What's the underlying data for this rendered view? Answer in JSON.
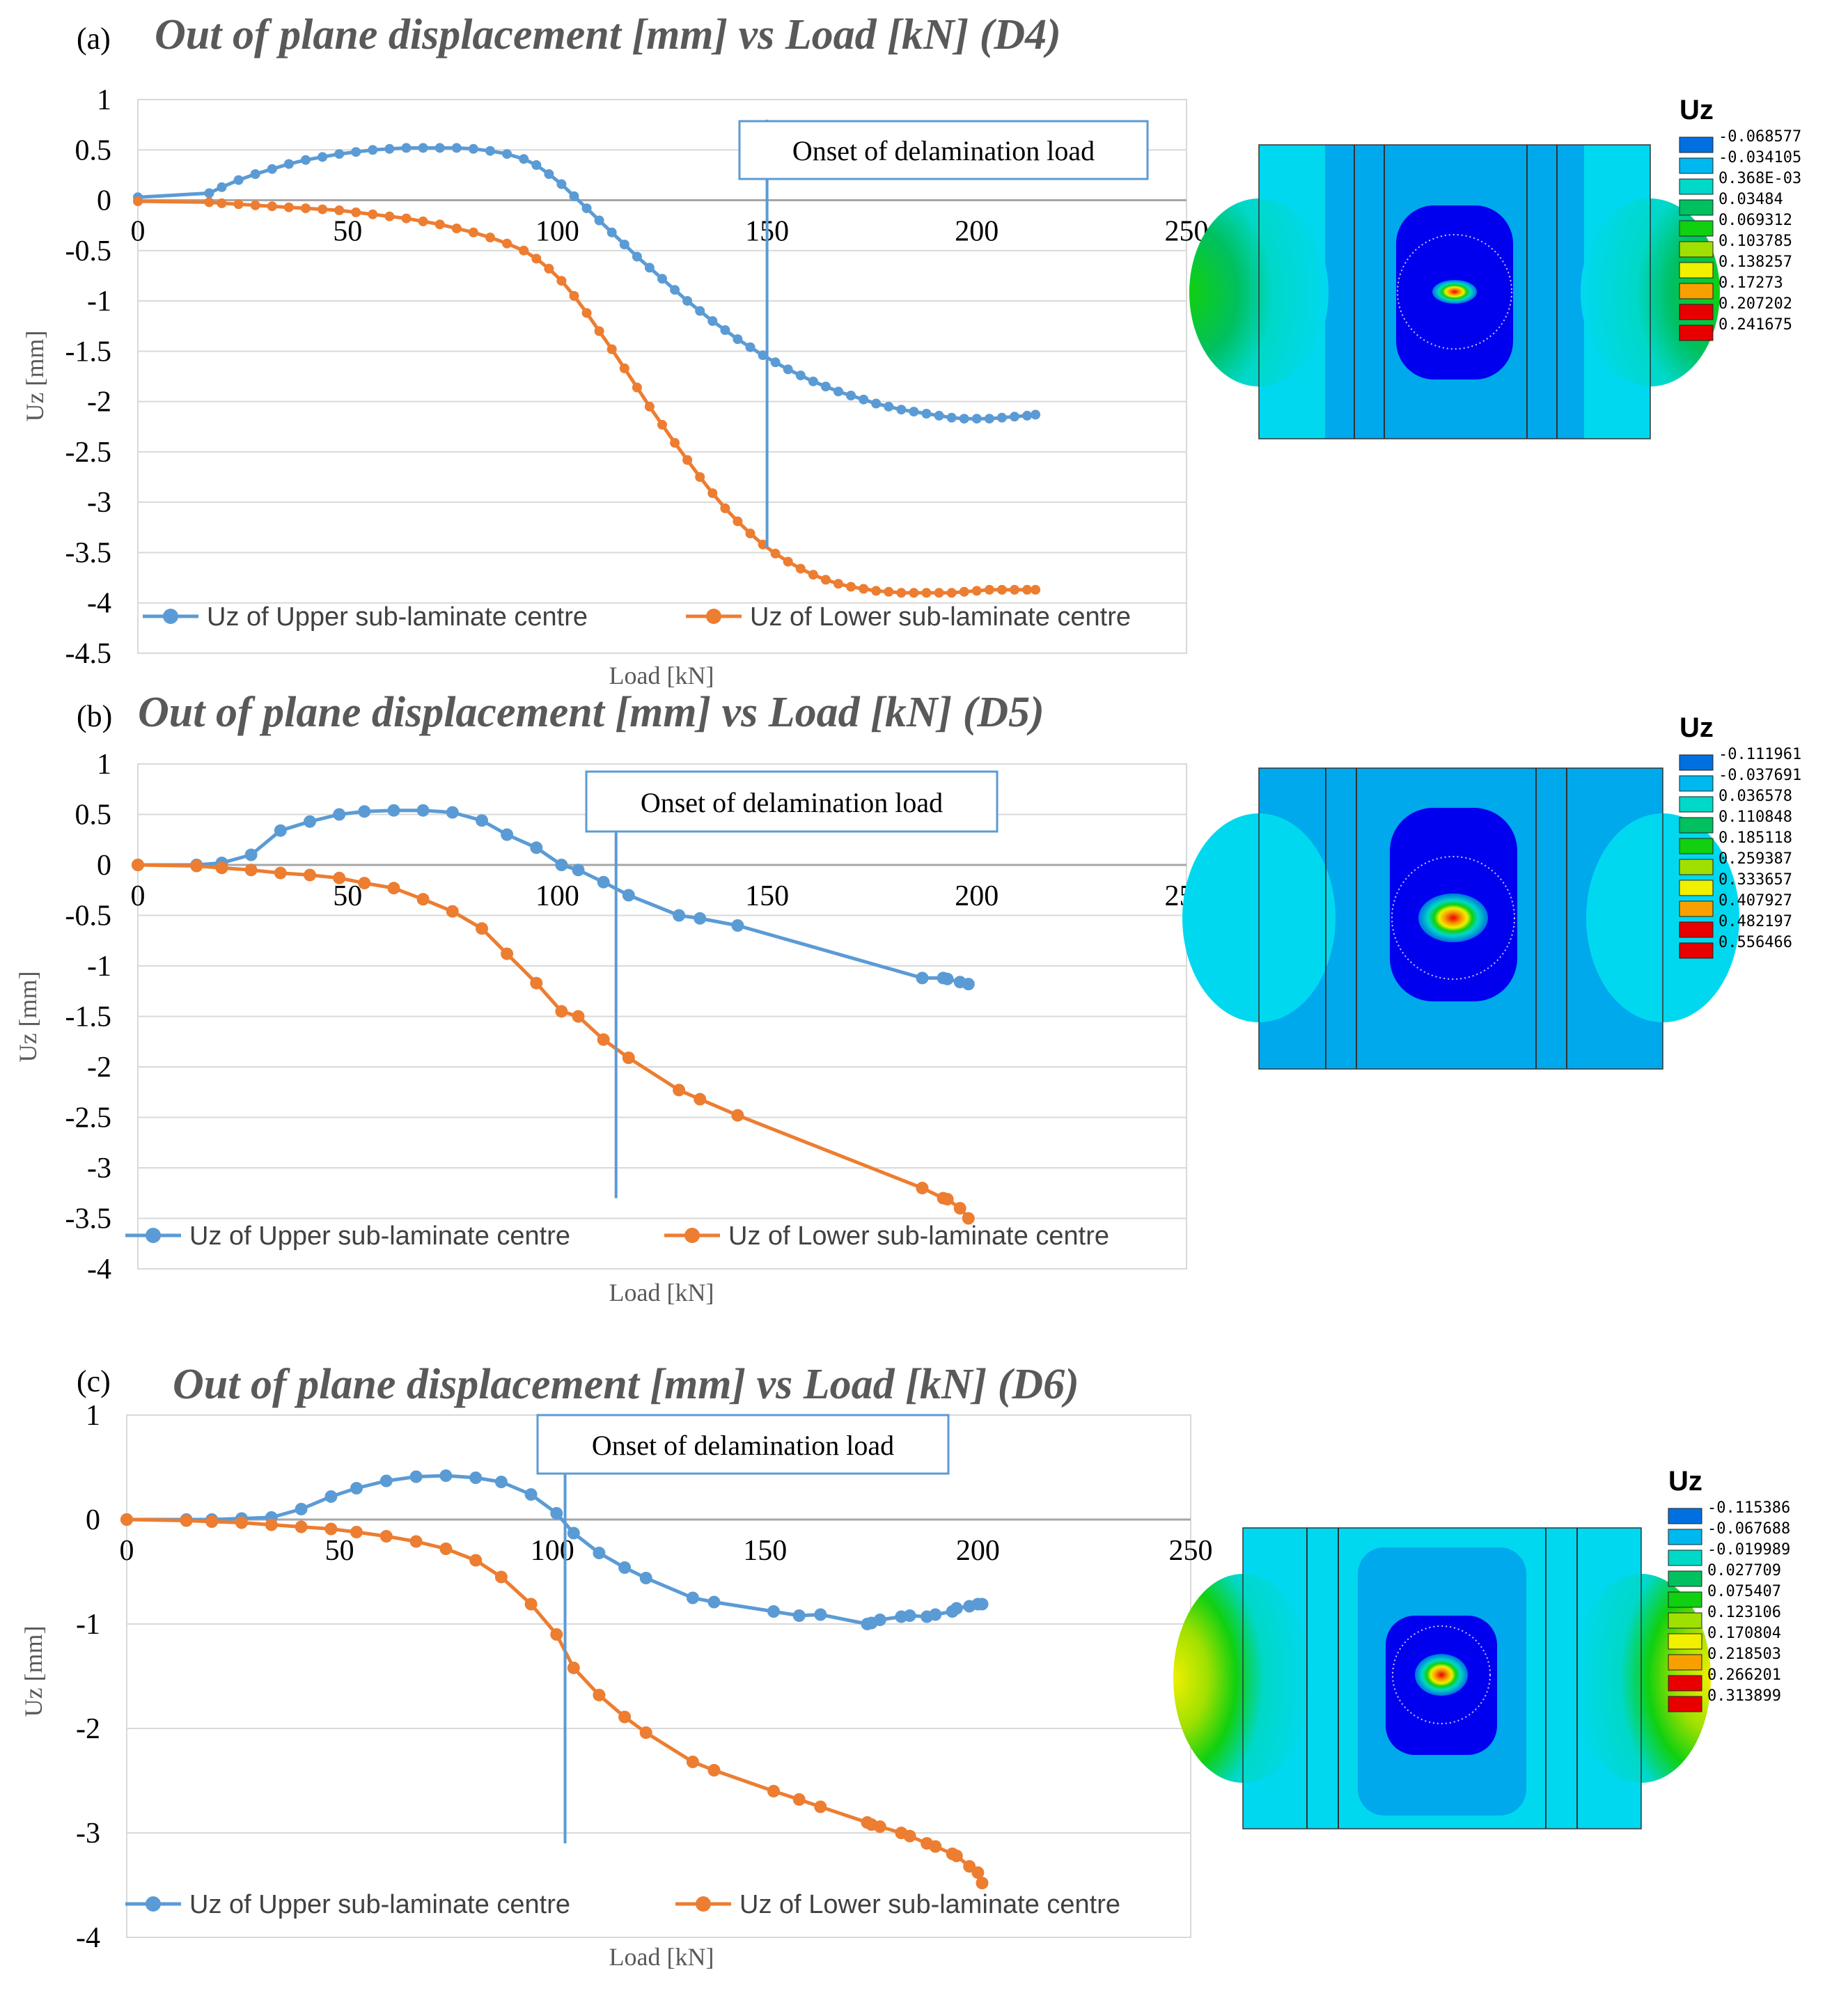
{
  "chart_data": [
    {
      "type": "line",
      "panel": "(a)",
      "title": "Out of plane displacement [mm] vs Load [kN] (D4)",
      "xlabel": "Load [kN]",
      "ylabel": "Uz [mm]",
      "xlim": [
        0,
        250
      ],
      "ylim": [
        -4.5,
        1
      ],
      "xticks": [
        0,
        50,
        100,
        150,
        200,
        250
      ],
      "yticks": [
        1,
        0.5,
        0,
        -0.5,
        -1,
        -1.5,
        -2,
        -2.5,
        -3,
        -3.5,
        -4,
        -4.5
      ],
      "annotation": {
        "text": "Onset of delamination load",
        "x": 150,
        "y_from": -3.45,
        "y_to": 0.8
      },
      "series": [
        {
          "name": "Uz of Upper sub-laminate centre",
          "color": "#5B9BD5",
          "x": [
            0,
            17,
            20,
            24,
            28,
            32,
            36,
            40,
            44,
            48,
            52,
            56,
            60,
            64,
            68,
            72,
            76,
            80,
            84,
            88,
            92,
            95,
            98,
            101,
            104,
            107,
            110,
            113,
            116,
            119,
            122,
            125,
            128,
            131,
            134,
            137,
            140,
            143,
            146,
            149,
            152,
            155,
            158,
            161,
            164,
            167,
            170,
            173,
            176,
            179,
            182,
            185,
            188,
            191,
            194,
            197,
            200,
            203,
            206,
            209,
            212,
            214
          ],
          "y": [
            0.03,
            0.07,
            0.13,
            0.2,
            0.26,
            0.31,
            0.36,
            0.4,
            0.43,
            0.46,
            0.48,
            0.5,
            0.51,
            0.52,
            0.52,
            0.52,
            0.52,
            0.51,
            0.49,
            0.46,
            0.41,
            0.35,
            0.26,
            0.16,
            0.04,
            -0.08,
            -0.2,
            -0.32,
            -0.44,
            -0.56,
            -0.67,
            -0.78,
            -0.89,
            -1.0,
            -1.1,
            -1.2,
            -1.29,
            -1.38,
            -1.46,
            -1.54,
            -1.61,
            -1.68,
            -1.74,
            -1.8,
            -1.85,
            -1.9,
            -1.94,
            -1.98,
            -2.02,
            -2.05,
            -2.08,
            -2.1,
            -2.12,
            -2.14,
            -2.16,
            -2.17,
            -2.17,
            -2.17,
            -2.16,
            -2.15,
            -2.14,
            -2.13
          ]
        },
        {
          "name": "Uz of Lower sub-laminate centre",
          "color": "#ED7D31",
          "x": [
            0,
            17,
            20,
            24,
            28,
            32,
            36,
            40,
            44,
            48,
            52,
            56,
            60,
            64,
            68,
            72,
            76,
            80,
            84,
            88,
            92,
            95,
            98,
            101,
            104,
            107,
            110,
            113,
            116,
            119,
            122,
            125,
            128,
            131,
            134,
            137,
            140,
            143,
            146,
            149,
            152,
            155,
            158,
            161,
            164,
            167,
            170,
            173,
            176,
            179,
            182,
            185,
            188,
            191,
            194,
            197,
            200,
            203,
            206,
            209,
            212,
            214
          ],
          "y": [
            -0.01,
            -0.02,
            -0.03,
            -0.04,
            -0.05,
            -0.06,
            -0.07,
            -0.08,
            -0.09,
            -0.1,
            -0.12,
            -0.14,
            -0.16,
            -0.18,
            -0.21,
            -0.24,
            -0.28,
            -0.32,
            -0.37,
            -0.43,
            -0.5,
            -0.58,
            -0.68,
            -0.8,
            -0.95,
            -1.12,
            -1.3,
            -1.48,
            -1.67,
            -1.86,
            -2.05,
            -2.23,
            -2.41,
            -2.58,
            -2.75,
            -2.91,
            -3.06,
            -3.19,
            -3.31,
            -3.42,
            -3.51,
            -3.59,
            -3.66,
            -3.72,
            -3.77,
            -3.81,
            -3.84,
            -3.86,
            -3.88,
            -3.89,
            -3.9,
            -3.9,
            -3.9,
            -3.9,
            -3.9,
            -3.89,
            -3.88,
            -3.87,
            -3.87,
            -3.87,
            -3.87,
            -3.87
          ]
        }
      ]
    },
    {
      "type": "line",
      "panel": "(b)",
      "title": "Out of plane displacement [mm] vs Load [kN] (D5)",
      "xlabel": "Load [kN]",
      "ylabel": "Uz [mm]",
      "xlim": [
        0,
        250
      ],
      "ylim": [
        -4,
        1
      ],
      "xticks": [
        0,
        50,
        100,
        150,
        200,
        250
      ],
      "yticks": [
        1,
        0.5,
        0,
        -0.5,
        -1,
        -1.5,
        -2,
        -2.5,
        -3,
        -3.5,
        -4
      ],
      "annotation": {
        "text": "Onset of delamination load",
        "x": 114,
        "y_from": -3.3,
        "y_to": 0.32
      },
      "series": [
        {
          "name": "Uz of Upper sub-laminate centre",
          "color": "#5B9BD5",
          "x": [
            0,
            14,
            20,
            27,
            34,
            41,
            48,
            54,
            61,
            68,
            75,
            82,
            88,
            95,
            101,
            105,
            111,
            117,
            129,
            134,
            143,
            187,
            192,
            193,
            196,
            198
          ],
          "y": [
            0,
            0,
            0.02,
            0.1,
            0.34,
            0.43,
            0.5,
            0.53,
            0.54,
            0.54,
            0.52,
            0.44,
            0.3,
            0.17,
            0.0,
            -0.05,
            -0.17,
            -0.3,
            -0.5,
            -0.53,
            -0.6,
            -1.12,
            -1.12,
            -1.13,
            -1.16,
            -1.18
          ]
        },
        {
          "name": "Uz of Lower sub-laminate centre",
          "color": "#ED7D31",
          "x": [
            0,
            14,
            20,
            27,
            34,
            41,
            48,
            54,
            61,
            68,
            75,
            82,
            88,
            95,
            101,
            105,
            111,
            117,
            129,
            134,
            143,
            187,
            192,
            193,
            196,
            198
          ],
          "y": [
            0,
            -0.01,
            -0.03,
            -0.05,
            -0.08,
            -0.1,
            -0.13,
            -0.18,
            -0.23,
            -0.34,
            -0.46,
            -0.63,
            -0.88,
            -1.17,
            -1.45,
            -1.5,
            -1.73,
            -1.91,
            -2.23,
            -2.32,
            -2.48,
            -3.2,
            -3.3,
            -3.31,
            -3.4,
            -3.5
          ]
        }
      ]
    },
    {
      "type": "line",
      "panel": "(c)",
      "title": "Out of plane displacement [mm] vs Load [kN] (D6)",
      "xlabel": "Load [kN]",
      "ylabel": "Uz [mm]",
      "xlim": [
        0,
        250
      ],
      "ylim": [
        -4,
        1
      ],
      "xticks": [
        0,
        50,
        100,
        150,
        200,
        250
      ],
      "yticks": [
        1,
        0,
        -1,
        -2,
        -3,
        -4
      ],
      "annotation": {
        "text": "Onset of delamination load",
        "x": 103,
        "y_from": -3.1,
        "y_to": 0.55
      },
      "series": [
        {
          "name": "Uz of Upper sub-laminate centre",
          "color": "#5B9BD5",
          "x": [
            0,
            14,
            20,
            27,
            34,
            41,
            48,
            54,
            61,
            68,
            75,
            82,
            88,
            95,
            101,
            105,
            111,
            117,
            122,
            133,
            138,
            152,
            158,
            163,
            174,
            175,
            177,
            182,
            184,
            188,
            190,
            194,
            195,
            198,
            200,
            201
          ],
          "y": [
            0,
            0,
            0,
            0.01,
            0.02,
            0.1,
            0.22,
            0.3,
            0.37,
            0.41,
            0.42,
            0.4,
            0.36,
            0.24,
            0.06,
            -0.13,
            -0.32,
            -0.46,
            -0.56,
            -0.75,
            -0.79,
            -0.88,
            -0.92,
            -0.91,
            -1.0,
            -0.99,
            -0.96,
            -0.93,
            -0.92,
            -0.93,
            -0.91,
            -0.88,
            -0.85,
            -0.83,
            -0.81,
            -0.81
          ]
        },
        {
          "name": "Uz of Lower sub-laminate centre",
          "color": "#ED7D31",
          "x": [
            0,
            14,
            20,
            27,
            34,
            41,
            48,
            54,
            61,
            68,
            75,
            82,
            88,
            95,
            101,
            105,
            111,
            117,
            122,
            133,
            138,
            152,
            158,
            163,
            174,
            175,
            177,
            182,
            184,
            188,
            190,
            194,
            195,
            198,
            200,
            201
          ],
          "y": [
            0,
            -0.01,
            -0.02,
            -0.03,
            -0.05,
            -0.07,
            -0.09,
            -0.12,
            -0.16,
            -0.21,
            -0.28,
            -0.39,
            -0.55,
            -0.81,
            -1.1,
            -1.42,
            -1.68,
            -1.89,
            -2.04,
            -2.32,
            -2.4,
            -2.6,
            -2.68,
            -2.75,
            -2.9,
            -2.92,
            -2.94,
            -3.0,
            -3.03,
            -3.1,
            -3.13,
            -3.2,
            -3.22,
            -3.32,
            -3.38,
            -3.48
          ]
        }
      ]
    }
  ],
  "contour_maps": [
    {
      "title": "Uz",
      "values": [
        "-0.068577",
        "-0.034105",
        "0.368E-03",
        "0.03484",
        "0.069312",
        "0.103785",
        "0.138257",
        "0.17273",
        "0.207202",
        "0.241675"
      ],
      "colors": [
        "#0000EE",
        "#0070E0",
        "#00B8F0",
        "#00D8C8",
        "#00C060",
        "#10D010",
        "#A0E000",
        "#F0F000",
        "#F8A000",
        "#E80000"
      ]
    },
    {
      "title": "Uz",
      "values": [
        "-0.111961",
        "-0.037691",
        "0.036578",
        "0.110848",
        "0.185118",
        "0.259387",
        "0.333657",
        "0.407927",
        "0.482197",
        "0.556466"
      ],
      "colors": [
        "#0000EE",
        "#0070E0",
        "#00B8F0",
        "#00D8C8",
        "#00C060",
        "#10D010",
        "#A0E000",
        "#F0F000",
        "#F8A000",
        "#E80000"
      ]
    },
    {
      "title": "Uz",
      "values": [
        "-0.115386",
        "-0.067688",
        "-0.019989",
        "0.027709",
        "0.075407",
        "0.123106",
        "0.170804",
        "0.218503",
        "0.266201",
        "0.313899"
      ],
      "colors": [
        "#0000EE",
        "#0070E0",
        "#00B8F0",
        "#00D8C8",
        "#00C060",
        "#10D010",
        "#A0E000",
        "#F0F000",
        "#F8A000",
        "#E80000"
      ]
    }
  ]
}
